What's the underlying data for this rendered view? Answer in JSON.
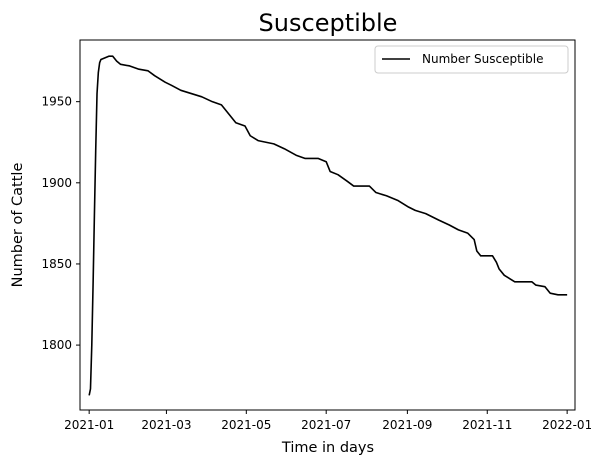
{
  "chart_data": {
    "type": "line",
    "title": "Susceptible",
    "xlabel": "Time in days",
    "ylabel": "Number of Cattle",
    "xlim": [
      "2020-12-25",
      "2022-01-07"
    ],
    "ylim": [
      1760,
      1988
    ],
    "x_ticks": [
      "2021-01",
      "2021-03",
      "2021-05",
      "2021-07",
      "2021-09",
      "2021-11",
      "2022-01"
    ],
    "y_ticks": [
      1800,
      1850,
      1900,
      1950
    ],
    "grid": false,
    "legend": {
      "position": "top-right"
    },
    "series": [
      {
        "name": "Number Susceptible",
        "color": "#000000",
        "points": [
          [
            "2021-01-01",
            1769
          ],
          [
            "2021-01-02",
            1773
          ],
          [
            "2021-01-03",
            1800
          ],
          [
            "2021-01-04",
            1838
          ],
          [
            "2021-01-05",
            1880
          ],
          [
            "2021-01-06",
            1920
          ],
          [
            "2021-01-07",
            1955
          ],
          [
            "2021-01-08",
            1968
          ],
          [
            "2021-01-09",
            1974
          ],
          [
            "2021-01-10",
            1976
          ],
          [
            "2021-01-13",
            1977
          ],
          [
            "2021-01-16",
            1978
          ],
          [
            "2021-01-19",
            1978
          ],
          [
            "2021-01-22",
            1975
          ],
          [
            "2021-01-25",
            1973
          ],
          [
            "2021-02-01",
            1972
          ],
          [
            "2021-02-08",
            1970
          ],
          [
            "2021-02-15",
            1969
          ],
          [
            "2021-02-20",
            1966
          ],
          [
            "2021-02-28",
            1962
          ],
          [
            "2021-03-05",
            1960
          ],
          [
            "2021-03-12",
            1957
          ],
          [
            "2021-03-20",
            1955
          ],
          [
            "2021-03-28",
            1953
          ],
          [
            "2021-04-05",
            1950
          ],
          [
            "2021-04-12",
            1948
          ],
          [
            "2021-04-18",
            1942
          ],
          [
            "2021-04-23",
            1937
          ],
          [
            "2021-04-30",
            1935
          ],
          [
            "2021-05-04",
            1929
          ],
          [
            "2021-05-10",
            1926
          ],
          [
            "2021-05-16",
            1925
          ],
          [
            "2021-05-22",
            1924
          ],
          [
            "2021-05-30",
            1921
          ],
          [
            "2021-06-08",
            1917
          ],
          [
            "2021-06-15",
            1915
          ],
          [
            "2021-06-25",
            1915
          ],
          [
            "2021-07-01",
            1913
          ],
          [
            "2021-07-04",
            1907
          ],
          [
            "2021-07-10",
            1905
          ],
          [
            "2021-07-17",
            1901
          ],
          [
            "2021-07-22",
            1898
          ],
          [
            "2021-08-03",
            1898
          ],
          [
            "2021-08-08",
            1894
          ],
          [
            "2021-08-16",
            1892
          ],
          [
            "2021-08-25",
            1889
          ],
          [
            "2021-09-02",
            1885
          ],
          [
            "2021-09-07",
            1883
          ],
          [
            "2021-09-15",
            1881
          ],
          [
            "2021-09-25",
            1877
          ],
          [
            "2021-10-03",
            1874
          ],
          [
            "2021-10-10",
            1871
          ],
          [
            "2021-10-17",
            1869
          ],
          [
            "2021-10-22",
            1865
          ],
          [
            "2021-10-24",
            1858
          ],
          [
            "2021-10-27",
            1855
          ],
          [
            "2021-11-05",
            1855
          ],
          [
            "2021-11-08",
            1851
          ],
          [
            "2021-11-10",
            1847
          ],
          [
            "2021-11-14",
            1843
          ],
          [
            "2021-11-18",
            1841
          ],
          [
            "2021-11-22",
            1839
          ],
          [
            "2021-12-05",
            1839
          ],
          [
            "2021-12-08",
            1837
          ],
          [
            "2021-12-15",
            1836
          ],
          [
            "2021-12-19",
            1832
          ],
          [
            "2021-12-25",
            1831
          ],
          [
            "2022-01-01",
            1831
          ]
        ]
      }
    ]
  }
}
